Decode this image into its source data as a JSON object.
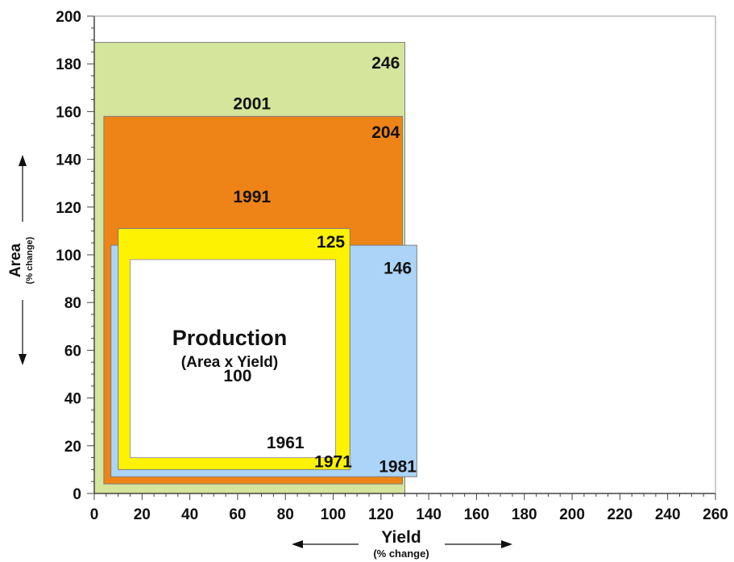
{
  "chart_data": {
    "type": "area",
    "xlabel": "Yield",
    "xlabel_sub": "(% change)",
    "ylabel": "Area",
    "ylabel_sub": "(% change)",
    "xlim": [
      0,
      260
    ],
    "ylim": [
      0,
      200
    ],
    "x_ticks": [
      0,
      20,
      40,
      60,
      80,
      100,
      120,
      140,
      160,
      180,
      200,
      220,
      240,
      260
    ],
    "y_ticks": [
      0,
      20,
      40,
      60,
      80,
      100,
      120,
      140,
      160,
      180,
      200
    ],
    "grid": false,
    "rectangles": [
      {
        "year": "2001",
        "production": "246",
        "x0": 0,
        "x1": 130,
        "y0": 0,
        "y1": 189,
        "color": "#d5e59b"
      },
      {
        "year": "1991",
        "production": "204",
        "x0": 4,
        "x1": 129,
        "y0": 4,
        "y1": 158,
        "color": "#ee8317"
      },
      {
        "year": "1981",
        "production": "146",
        "x0": 7,
        "x1": 135,
        "y0": 7,
        "y1": 104,
        "color": "#abd4f8"
      },
      {
        "year": "1971",
        "production": "125",
        "x0": 10,
        "x1": 107,
        "y0": 10,
        "y1": 111,
        "color": "#fef203"
      },
      {
        "year": "1961",
        "production": "100",
        "x0": 15,
        "x1": 101,
        "y0": 15,
        "y1": 98,
        "color": "#ffffff"
      }
    ],
    "center_title": "Production",
    "center_subtitle": "(Area x Yield)"
  }
}
